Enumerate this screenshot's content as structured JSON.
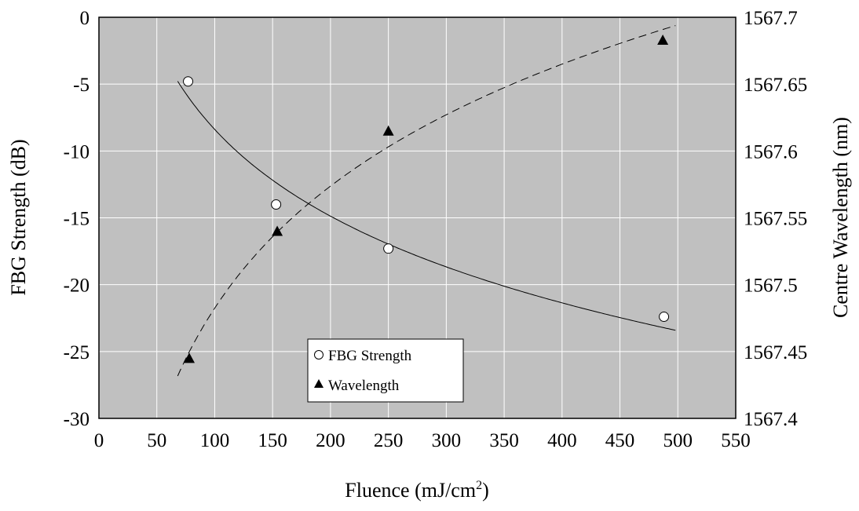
{
  "chart_data": {
    "type": "scatter",
    "xlabel": "Fluence (mJ/cm",
    "xlabel_sup": "2",
    "xlabel_end": ")",
    "ylabel_left": "FBG Strength (dB)",
    "ylabel_right": "Centre Wavelength (nm)",
    "xlim": [
      0,
      550
    ],
    "ylim_left": [
      -30,
      0
    ],
    "ylim_right": [
      1567.4,
      1567.7
    ],
    "x_ticks": [
      "0",
      "50",
      "100",
      "150",
      "200",
      "250",
      "300",
      "350",
      "400",
      "450",
      "500",
      "550"
    ],
    "y_left_ticks": [
      "0",
      "-5",
      "-10",
      "-15",
      "-20",
      "-25",
      "-30"
    ],
    "y_right_ticks": [
      "1567.7",
      "1567.65",
      "1567.6",
      "1567.55",
      "1567.5",
      "1567.45",
      "1567.4"
    ],
    "grid": true,
    "plot_background": "#c0c0c0",
    "legend_position": "bottom-center",
    "series": [
      {
        "name": "FBG Strength",
        "axis": "left",
        "marker": "open-circle",
        "x": [
          77,
          153,
          250,
          488
        ],
        "y": [
          -4.8,
          -14.0,
          -17.3,
          -22.4
        ]
      },
      {
        "name": "Wavelength",
        "axis": "right",
        "marker": "filled-triangle",
        "x": [
          78,
          154,
          250,
          487
        ],
        "y": [
          1567.445,
          1567.54,
          1567.615,
          1567.683
        ]
      }
    ],
    "fits": [
      {
        "series": "FBG Strength",
        "style": "solid",
        "x_range": [
          68,
          498
        ]
      },
      {
        "series": "Wavelength",
        "style": "dashed",
        "x_range": [
          68,
          498
        ]
      }
    ]
  }
}
